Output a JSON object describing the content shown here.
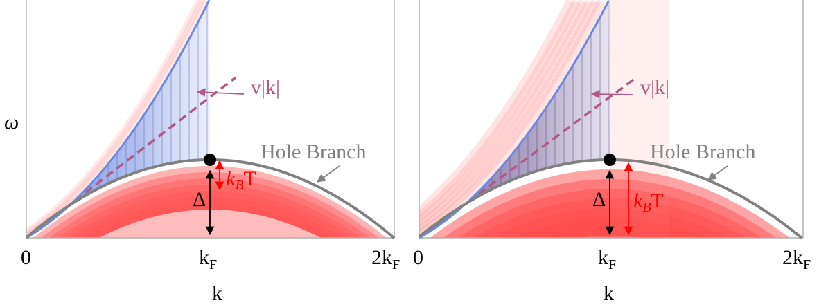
{
  "y_axis_label": "ω",
  "panels": [
    {
      "id": "left",
      "tick_labels": [
        "0",
        "k",
        "2k"
      ],
      "tick_subscripts": [
        "",
        "F",
        "F"
      ],
      "x_axis_label": "k",
      "velocity_label": "v|k|",
      "hole_branch_label": "Hole Branch",
      "delta_label": "Δ",
      "thermal_label_k": "k",
      "thermal_label_sub": "B",
      "thermal_label_T": "T"
    },
    {
      "id": "right",
      "tick_labels": [
        "0",
        "k",
        "2k"
      ],
      "tick_subscripts": [
        "",
        "F",
        "F"
      ],
      "x_axis_label": "k",
      "velocity_label": "v|k|",
      "hole_branch_label": "Hole Branch",
      "delta_label": "Δ",
      "thermal_label_k": "k",
      "thermal_label_sub": "B",
      "thermal_label_T": "T"
    }
  ],
  "colors": {
    "hole_branch_curve": "#808080",
    "particle_branch_curve": "#6c8ae0",
    "continuum_fill": "#8aa0e8",
    "thermal_red": "#ff3333",
    "velocity_line": "#b05a85",
    "annotation_red": "#ff0000",
    "label_gray": "#808080"
  }
}
